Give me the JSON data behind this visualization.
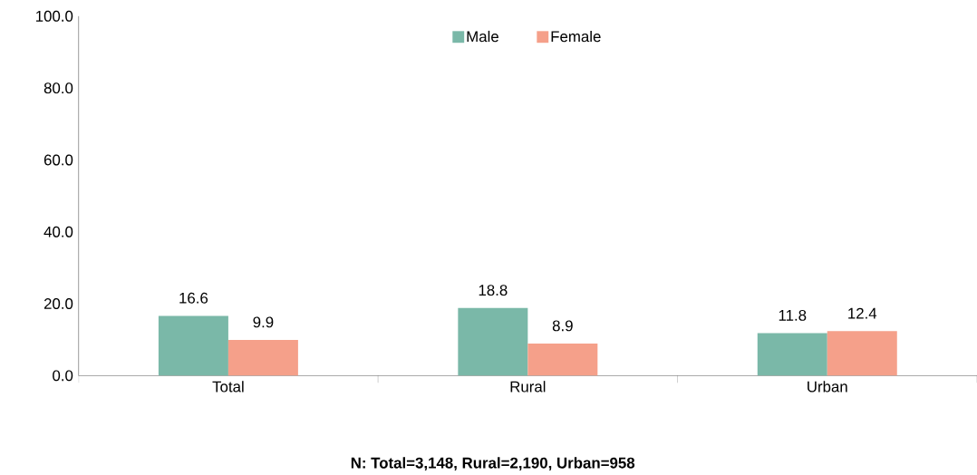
{
  "chart_data": {
    "type": "bar",
    "categories": [
      "Total",
      "Rural",
      "Urban"
    ],
    "series": [
      {
        "name": "Male",
        "color": "#7ab8a8",
        "values": [
          16.6,
          18.8,
          11.8
        ]
      },
      {
        "name": "Female",
        "color": "#f5a08a",
        "values": [
          9.9,
          8.9,
          12.4
        ]
      }
    ],
    "ylim": [
      0,
      100
    ],
    "yticks": [
      {
        "value": 0,
        "label": "0.0"
      },
      {
        "value": 20,
        "label": "20.0"
      },
      {
        "value": 40,
        "label": "40.0"
      },
      {
        "value": 60,
        "label": "60.0"
      },
      {
        "value": 80,
        "label": "80.0"
      },
      {
        "value": 100,
        "label": "100.0"
      }
    ],
    "data_labels": true,
    "legend": "top",
    "grid": false,
    "annotations": [
      "**N: Total=3,148, Rural=2,190, Urban=958**"
    ]
  }
}
